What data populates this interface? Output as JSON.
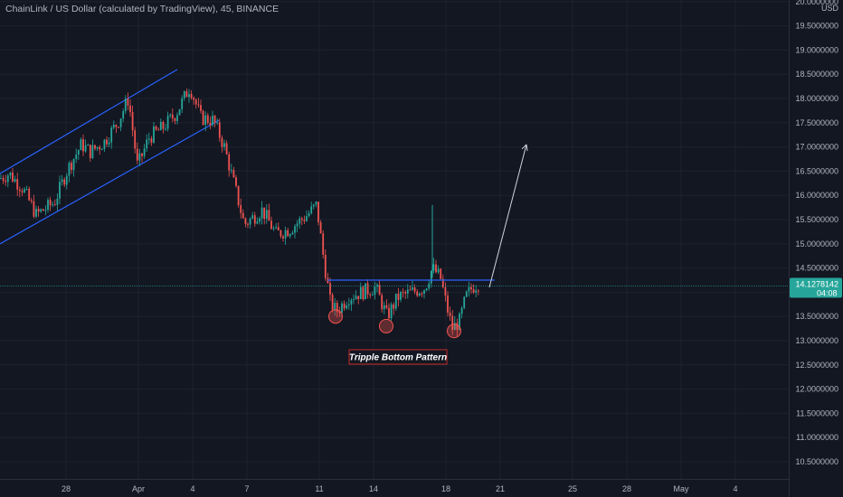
{
  "header": {
    "title": "ChainLink / US Dollar (calculated by TradingView), 45, BINANCE"
  },
  "price_axis": {
    "currency": "USD",
    "ticks": [
      "20.0000000",
      "19.5000000",
      "19.0000000",
      "18.5000000",
      "18.0000000",
      "17.5000000",
      "17.0000000",
      "16.5000000",
      "16.0000000",
      "15.5000000",
      "15.0000000",
      "14.5000000",
      "14.0000000",
      "13.5000000",
      "13.0000000",
      "12.5000000",
      "12.0000000",
      "11.5000000",
      "11.0000000",
      "10.5000000"
    ]
  },
  "current_price": {
    "value": "14.1278142",
    "countdown": "04:08",
    "color": "#26a69a"
  },
  "time_axis": {
    "ticks": [
      "28",
      "Apr",
      "4",
      "7",
      "11",
      "14",
      "18",
      "21",
      "25",
      "28",
      "May",
      "4"
    ]
  },
  "annotation": {
    "label": "Tripple Bottom Pattern",
    "color": "#c62828"
  },
  "colors": {
    "background": "#131722",
    "up": "#26a69a",
    "down": "#ef5350",
    "channel": "#2962ff",
    "neckline": "#2962ff",
    "arrow": "#d1d4dc",
    "grid": "#1e222d"
  },
  "chart_data": {
    "type": "candlestick",
    "symbol": "LINKUSD",
    "interval": "45",
    "exchange": "BINANCE",
    "ylim": [
      10.2,
      20.05
    ],
    "price_path": [
      [
        0,
        16.35
      ],
      [
        10,
        16.45
      ],
      [
        25,
        16.15
      ],
      [
        40,
        15.6
      ],
      [
        60,
        15.85
      ],
      [
        75,
        16.55
      ],
      [
        90,
        17.05
      ],
      [
        100,
        16.9
      ],
      [
        115,
        17.1
      ],
      [
        130,
        17.5
      ],
      [
        142,
        18.0
      ],
      [
        152,
        16.6
      ],
      [
        165,
        17.2
      ],
      [
        180,
        17.4
      ],
      [
        195,
        17.7
      ],
      [
        210,
        18.25
      ],
      [
        222,
        17.6
      ],
      [
        236,
        17.55
      ],
      [
        248,
        17.0
      ],
      [
        262,
        16.0
      ],
      [
        270,
        15.4
      ],
      [
        290,
        15.7
      ],
      [
        305,
        15.2
      ],
      [
        320,
        15.3
      ],
      [
        340,
        15.6
      ],
      [
        350,
        15.8
      ],
      [
        357,
        14.8
      ],
      [
        365,
        13.8
      ],
      [
        372,
        13.6
      ],
      [
        385,
        13.9
      ],
      [
        400,
        14.0
      ],
      [
        415,
        14.1
      ],
      [
        428,
        13.5
      ],
      [
        440,
        13.9
      ],
      [
        455,
        14.0
      ],
      [
        470,
        14.1
      ],
      [
        478,
        14.5
      ],
      [
        487,
        14.3
      ],
      [
        494,
        13.7
      ],
      [
        500,
        13.25
      ],
      [
        508,
        13.4
      ],
      [
        515,
        13.9
      ],
      [
        522,
        14.1
      ],
      [
        530,
        14.2
      ]
    ],
    "channel": {
      "lower": [
        [
          0,
          15.0
        ],
        [
          242,
          17.55
        ]
      ],
      "upper": [
        [
          0,
          16.45
        ],
        [
          196,
          18.6
        ]
      ]
    },
    "resistance_level": 14.25,
    "projection_target": 17.05,
    "bottoms": [
      13.5,
      13.3,
      13.2
    ]
  }
}
